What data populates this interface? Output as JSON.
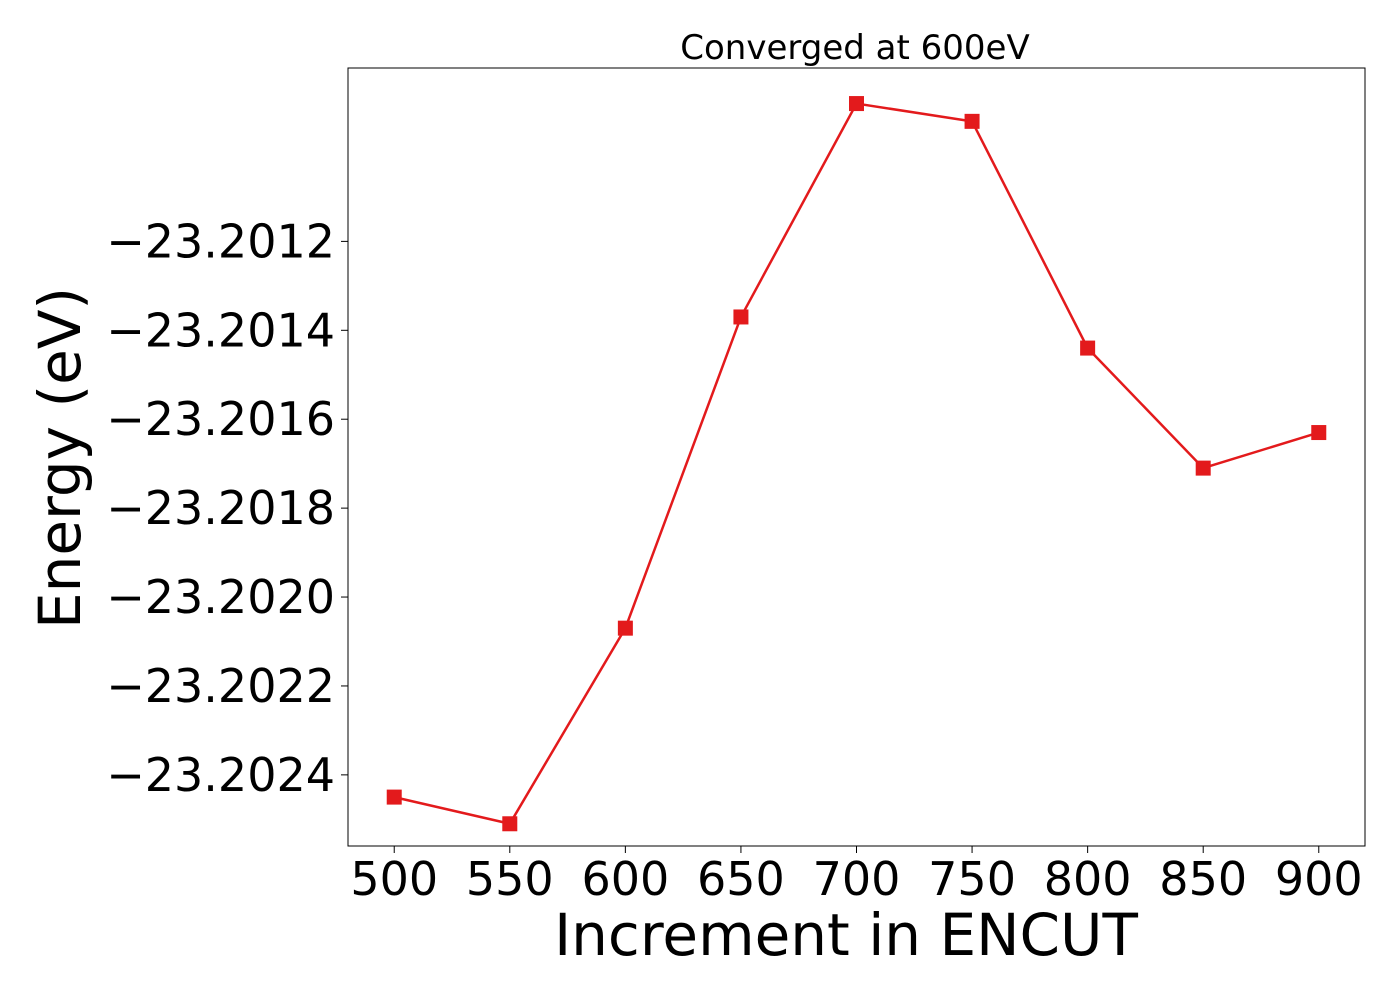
{
  "chart_data": {
    "type": "line",
    "title": "Converged at 600eV",
    "xlabel": "Increment in ENCUT",
    "ylabel": "Energy (eV)",
    "x": [
      500,
      550,
      600,
      650,
      700,
      750,
      800,
      850,
      900
    ],
    "series": [
      {
        "values": [
          -23.20245,
          -23.20251,
          -23.20207,
          -23.20137,
          -23.20089,
          -23.20093,
          -23.20144,
          -23.20171,
          -23.20163
        ],
        "color": "#e31a1c",
        "marker": "square"
      }
    ],
    "xticks": [
      500,
      550,
      600,
      650,
      700,
      750,
      800,
      850,
      900
    ],
    "xtick_labels": [
      "500",
      "550",
      "600",
      "650",
      "700",
      "750",
      "800",
      "850",
      "900"
    ],
    "yticks": [
      -23.2024,
      -23.2022,
      -23.202,
      -23.2018,
      -23.2016,
      -23.2014,
      -23.2012
    ],
    "ytick_labels": [
      "−23.2024",
      "−23.2022",
      "−23.2020",
      "−23.2018",
      "−23.2016",
      "−23.2014",
      "−23.2012"
    ],
    "xlim": [
      480,
      920
    ],
    "ylim": [
      -23.20256,
      -23.20081
    ],
    "grid": false,
    "legend": false
  }
}
